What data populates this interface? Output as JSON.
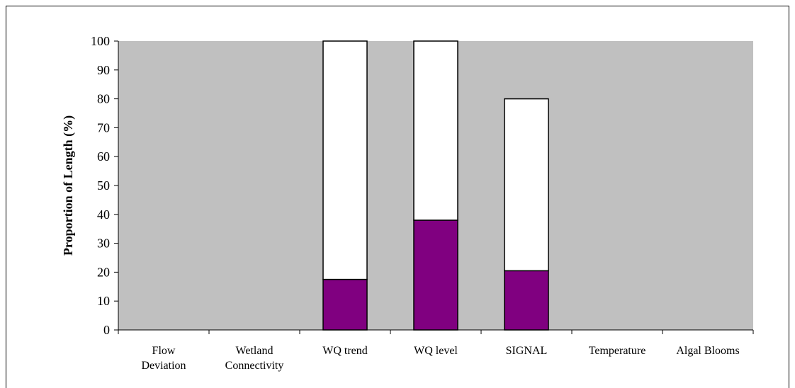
{
  "chart_data": {
    "type": "bar",
    "stacked": true,
    "categories": [
      [
        "Flow",
        "Deviation"
      ],
      [
        "Wetland",
        "Connectivity"
      ],
      [
        "WQ trend"
      ],
      [
        "WQ level"
      ],
      [
        "SIGNAL"
      ],
      [
        "Temperature"
      ],
      [
        "Algal Blooms"
      ]
    ],
    "series": [
      {
        "color": "#800080",
        "values": [
          0,
          0,
          17.5,
          38,
          20.5,
          0,
          0
        ]
      },
      {
        "color": "#ffffff",
        "values": [
          0,
          0,
          82.5,
          62,
          59.5,
          0,
          0
        ]
      }
    ],
    "ylabel": "Proportion of Length (%)",
    "ylim": [
      0,
      100
    ],
    "yticks": [
      0,
      10,
      20,
      30,
      40,
      50,
      60,
      70,
      80,
      90,
      100
    ],
    "plot_background": "#c0c0c0",
    "grid": false,
    "legend": "none"
  }
}
